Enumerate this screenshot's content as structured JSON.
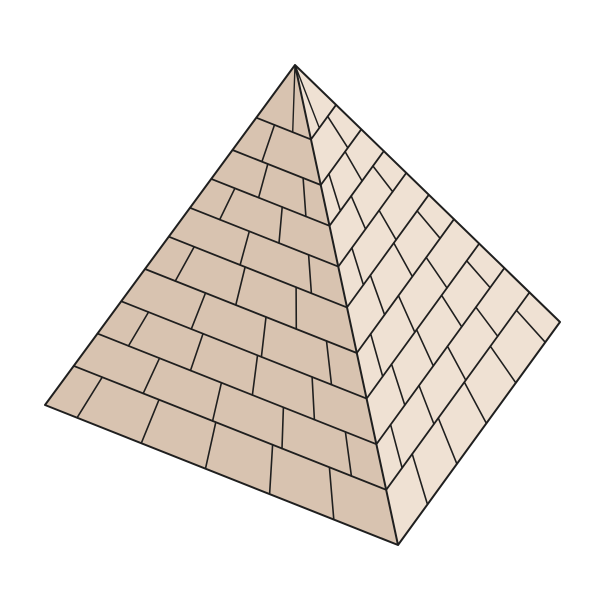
{
  "illustration": {
    "subject": "pyramid",
    "colors": {
      "background": "#ffffff",
      "left_face": "#d8c3b0",
      "right_face": "#efe1d3",
      "outline": "#1f1f1f"
    }
  }
}
